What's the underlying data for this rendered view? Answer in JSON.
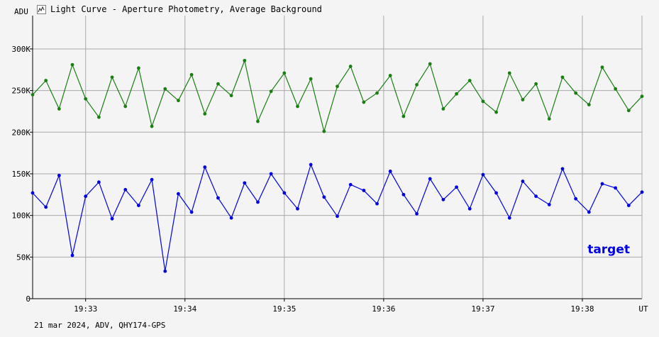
{
  "window": {
    "title": "Light Curve - Aperture Photometry, Average Background",
    "title_icon": "light-curve-icon"
  },
  "footer": {
    "info": "21 mar 2024, ADV, QHY174-GPS"
  },
  "colors": {
    "background": "#f4f4f4",
    "grid": "#a9a9a9",
    "axis": "#000000",
    "target": "#0000e6",
    "comparison": "#1a7f12"
  },
  "chart_data": {
    "type": "line",
    "title": "Light Curve - Aperture Photometry, Average Background",
    "ylabel": "ADU",
    "xlabel": "UT",
    "ylim": [
      0,
      340000
    ],
    "xlim": [
      "19:32:28",
      "19:38:36"
    ],
    "yticks": [
      {
        "value": 0,
        "label": "0"
      },
      {
        "value": 50000,
        "label": "50K"
      },
      {
        "value": 100000,
        "label": "100K"
      },
      {
        "value": 150000,
        "label": "150K"
      },
      {
        "value": 200000,
        "label": "200K"
      },
      {
        "value": 250000,
        "label": "250K"
      },
      {
        "value": 300000,
        "label": "300K"
      }
    ],
    "xticks": [
      {
        "value": "19:33:00",
        "label": "19:33"
      },
      {
        "value": "19:34:00",
        "label": "19:34"
      },
      {
        "value": "19:35:00",
        "label": "19:35"
      },
      {
        "value": "19:36:00",
        "label": "19:36"
      },
      {
        "value": "19:37:00",
        "label": "19:37"
      },
      {
        "value": "19:38:00",
        "label": "19:38"
      }
    ],
    "grid": true,
    "legend_position": "bottom-right",
    "series": [
      {
        "name": "",
        "color": "#1a7f12",
        "x": [
          "19:32:28",
          "19:32:36",
          "19:32:44",
          "19:32:52",
          "19:33:00",
          "19:33:08",
          "19:33:16",
          "19:33:24",
          "19:33:32",
          "19:33:40",
          "19:33:48",
          "19:33:56",
          "19:34:04",
          "19:34:12",
          "19:34:20",
          "19:34:28",
          "19:34:36",
          "19:34:44",
          "19:34:52",
          "19:35:00",
          "19:35:08",
          "19:35:16",
          "19:35:24",
          "19:35:32",
          "19:35:40",
          "19:35:48",
          "19:35:56",
          "19:36:04",
          "19:36:12",
          "19:36:20",
          "19:36:28",
          "19:36:36",
          "19:36:44",
          "19:36:52",
          "19:37:00",
          "19:37:08",
          "19:37:16",
          "19:37:24",
          "19:37:32",
          "19:37:40",
          "19:37:48",
          "19:37:56",
          "19:38:04",
          "19:38:12",
          "19:38:20",
          "19:38:28",
          "19:38:36"
        ],
        "values": [
          245000,
          262000,
          228000,
          281000,
          240000,
          218000,
          266000,
          231000,
          277000,
          207000,
          252000,
          238000,
          269000,
          222000,
          258000,
          244000,
          286000,
          213000,
          249000,
          271000,
          231000,
          264000,
          201000,
          255000,
          279000,
          236000,
          247000,
          268000,
          219000,
          257000,
          282000,
          228000,
          246000,
          262000,
          237000,
          224000,
          271000,
          239000,
          258000,
          216000,
          266000,
          247000,
          233000,
          278000,
          252000,
          226000,
          243000
        ]
      },
      {
        "name": "target",
        "color": "#0000e6",
        "x": [
          "19:32:28",
          "19:32:36",
          "19:32:44",
          "19:32:52",
          "19:33:00",
          "19:33:08",
          "19:33:16",
          "19:33:24",
          "19:33:32",
          "19:33:40",
          "19:33:48",
          "19:33:56",
          "19:34:04",
          "19:34:12",
          "19:34:20",
          "19:34:28",
          "19:34:36",
          "19:34:44",
          "19:34:52",
          "19:35:00",
          "19:35:08",
          "19:35:16",
          "19:35:24",
          "19:35:32",
          "19:35:40",
          "19:35:48",
          "19:35:56",
          "19:36:04",
          "19:36:12",
          "19:36:20",
          "19:36:28",
          "19:36:36",
          "19:36:44",
          "19:36:52",
          "19:37:00",
          "19:37:08",
          "19:37:16",
          "19:37:24",
          "19:37:32",
          "19:37:40",
          "19:37:48",
          "19:37:56",
          "19:38:04",
          "19:38:12",
          "19:38:20",
          "19:38:28",
          "19:38:36"
        ],
        "values": [
          127000,
          110000,
          148000,
          52000,
          123000,
          140000,
          96000,
          131000,
          112000,
          143000,
          33000,
          126000,
          104000,
          158000,
          121000,
          97000,
          139000,
          116000,
          150000,
          127000,
          108000,
          161000,
          122000,
          99000,
          137000,
          130000,
          114000,
          153000,
          125000,
          102000,
          144000,
          119000,
          134000,
          108000,
          149000,
          127000,
          97000,
          141000,
          123000,
          113000,
          156000,
          120000,
          104000,
          138000,
          133000,
          112000,
          128000
        ]
      }
    ],
    "annotations": [
      {
        "text": "target",
        "color": "#0000e6"
      }
    ]
  }
}
